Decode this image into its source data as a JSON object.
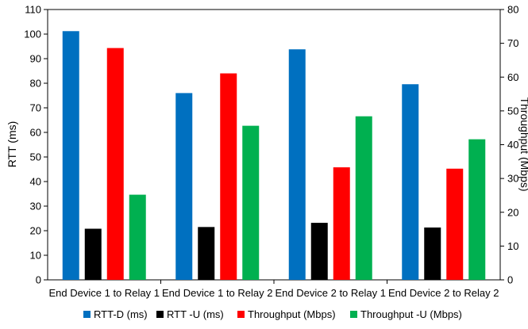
{
  "chart_data": {
    "type": "bar",
    "categories": [
      "End Device 1 to Relay 1",
      "End Device 1 to Relay 2",
      "End Device 2 to Relay 1",
      "End Device 2 to Relay 2"
    ],
    "series": [
      {
        "name": "RTT-D (ms)",
        "axis": "left",
        "color": "#0070C0",
        "values": [
          101.2,
          76.0,
          93.8,
          79.6
        ]
      },
      {
        "name": "RTT -U (ms)",
        "axis": "left",
        "color": "#000000",
        "values": [
          20.8,
          21.5,
          23.2,
          21.3
        ]
      },
      {
        "name": "Throughput (Mbps)",
        "axis": "right",
        "color": "#FF0000",
        "values": [
          68.6,
          61.1,
          33.3,
          32.9
        ]
      },
      {
        "name": "Throughput -U (Mbps)",
        "axis": "right",
        "color": "#00B050",
        "values": [
          25.2,
          45.6,
          48.4,
          41.6
        ]
      }
    ],
    "ylabel": "RTT (ms)",
    "y2label": "Throughput (Mbps)",
    "ylim": [
      0,
      110
    ],
    "y2lim": [
      0,
      80
    ],
    "yticks": [
      "0",
      "10",
      "20",
      "30",
      "40",
      "50",
      "60",
      "70",
      "80",
      "90",
      "100",
      "110"
    ],
    "y2ticks": [
      "0",
      "10",
      "20",
      "30",
      "40",
      "50",
      "60",
      "70",
      "80"
    ],
    "grid": false,
    "legend_position": "bottom"
  }
}
